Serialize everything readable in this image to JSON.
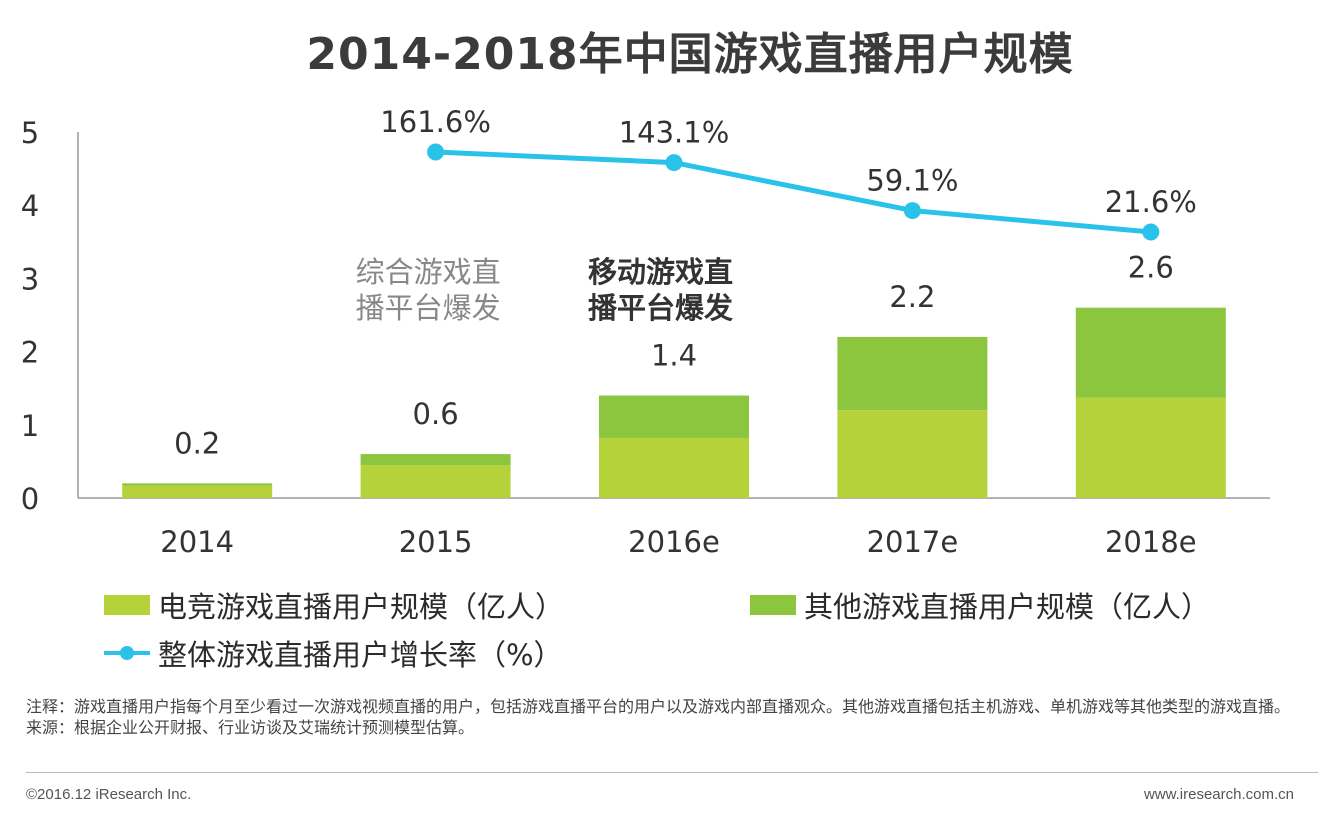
{
  "chart_data": {
    "type": "bar",
    "stacked": true,
    "title": "2014-2018年中国游戏直播用户规模",
    "categories": [
      "2014",
      "2015",
      "2016e",
      "2017e",
      "2018e"
    ],
    "series": [
      {
        "name": "电竞游戏直播用户规模（亿人）",
        "type": "bar",
        "color": "#b6d23a",
        "values": [
          0.17,
          0.45,
          0.82,
          1.2,
          1.37
        ]
      },
      {
        "name": "其他游戏直播用户规模（亿人）",
        "type": "bar",
        "color": "#8cc63f",
        "values": [
          0.03,
          0.15,
          0.58,
          1.0,
          1.23
        ]
      },
      {
        "name": "整体游戏直播用户增长率（%）",
        "type": "line",
        "color": "#29c3ea",
        "x": [
          "2015",
          "2016e",
          "2017e",
          "2018e"
        ],
        "values": [
          161.6,
          143.1,
          59.1,
          21.6
        ]
      }
    ],
    "total_labels": [
      "0.2",
      "0.6",
      "1.4",
      "2.2",
      "2.6"
    ],
    "rate_labels": [
      "161.6%",
      "143.1%",
      "59.1%",
      "21.6%"
    ],
    "y_ticks": [
      "0",
      "1",
      "2",
      "3",
      "4",
      "5"
    ],
    "ylim": [
      0,
      5
    ],
    "annotations": [
      {
        "text_lines": [
          "综合游戏直",
          "播平台爆发"
        ],
        "color": "#888888",
        "bold": false,
        "near": "2015"
      },
      {
        "text_lines": [
          "移动游戏直",
          "播平台爆发"
        ],
        "color": "#333333",
        "bold": true,
        "near": "2016e"
      }
    ],
    "legend_position": "bottom"
  },
  "legend": {
    "esports": "电竞游戏直播用户规模（亿人）",
    "other": "其他游戏直播用户规模（亿人）",
    "growth": "整体游戏直播用户增长率（%）"
  },
  "note": {
    "line1": "注释：游戏直播用户指每个月至少看过一次游戏视频直播的用户，包括游戏直播平台的用户以及游戏内部直播观众。其他游戏直播包括主机游戏、单机游戏等其他类型的游戏直播。",
    "line2": "来源：根据企业公开财报、行业访谈及艾瑞统计预测模型估算。"
  },
  "footer": {
    "copyright": "©2016.12 iResearch Inc.",
    "url": "www.iresearch.com.cn"
  }
}
